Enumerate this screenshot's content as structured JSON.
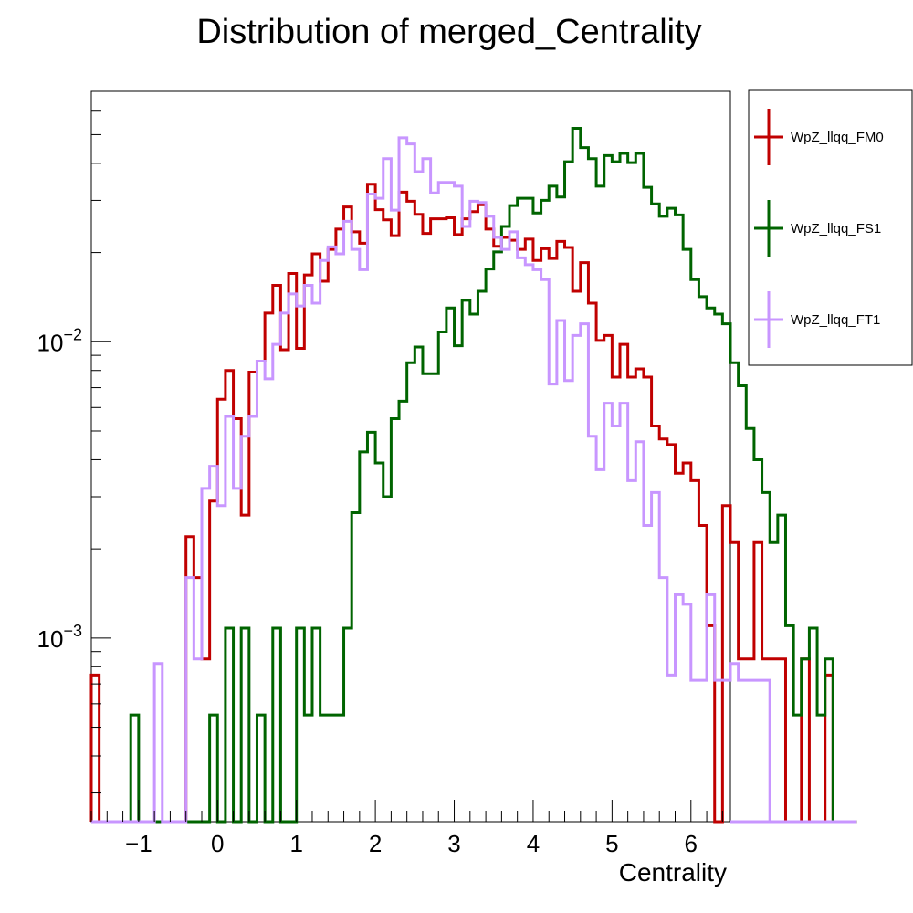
{
  "chart_data": {
    "type": "line",
    "style": "step-histogram",
    "title": "Distribution of merged_Centrality",
    "xlabel": "Centrality",
    "ylabel": "",
    "xlim": [
      -1.6,
      6.5
    ],
    "ylim": [
      0.00024,
      0.07
    ],
    "yscale": "log",
    "bin_width": 0.1,
    "x_start": -1.6,
    "grid": false,
    "legend_position": "right-outside-top",
    "x_ticks": [
      -1,
      0,
      1,
      2,
      3,
      4,
      5,
      6
    ],
    "x_tick_labels": [
      "−1",
      "0",
      "1",
      "2",
      "3",
      "4",
      "5",
      "6"
    ],
    "y_ticks": [
      {
        "value": 0.01,
        "base": "10",
        "exp": "−2"
      },
      {
        "value": 0.001,
        "base": "10",
        "exp": "−3"
      }
    ],
    "series": [
      {
        "name": "WpZ_llqq_FM0",
        "color": "#c00000",
        "values": [
          0.00075,
          0,
          0,
          0,
          0,
          0,
          0,
          0,
          0,
          0,
          0,
          0,
          0.0022,
          0.0016,
          0.00085,
          0.0029,
          0.0064,
          0.008,
          0.0055,
          0.0026,
          0.0079,
          0.0086,
          0.0125,
          0.0155,
          0.0094,
          0.017,
          0.0095,
          0.0168,
          0.0198,
          0.016,
          0.0205,
          0.024,
          0.0285,
          0.0235,
          0.0215,
          0.034,
          0.0279,
          0.0258,
          0.0228,
          0.032,
          0.0298,
          0.0269,
          0.0232,
          0.026,
          0.026,
          0.0262,
          0.023,
          0.026,
          0.0275,
          0.029,
          0.024,
          0.021,
          0.0225,
          0.022,
          0.0205,
          0.0222,
          0.0188,
          0.0206,
          0.0191,
          0.0218,
          0.0208,
          0.0148,
          0.0185,
          0.0135,
          0.0101,
          0.0105,
          0.0076,
          0.0098,
          0.0076,
          0.0081,
          0.0076,
          0.0052,
          0.0047,
          0.0045,
          0.0036,
          0.0039,
          0.0034,
          0.0024,
          0.0011,
          0,
          0.0028,
          0.0021,
          0.00085,
          0.00085,
          0.0021,
          0.00085,
          0.00085,
          0.00085,
          0,
          0,
          0.00085,
          0,
          0,
          0.00075,
          0,
          0,
          0
        ]
      },
      {
        "name": "WpZ_llqq_FS1",
        "color": "#006400",
        "values": [
          0,
          0,
          0,
          0,
          0,
          0.00055,
          0,
          0,
          0,
          0,
          0,
          0,
          0,
          0,
          0,
          0.00055,
          0,
          0.00108,
          0,
          0.00108,
          0,
          0.00055,
          0,
          0.00108,
          0,
          0,
          0.00108,
          0.00055,
          0.00108,
          0.00055,
          0.00055,
          0.00055,
          0.00108,
          0.00265,
          0.00425,
          0.00495,
          0.0039,
          0.003,
          0.0055,
          0.0063,
          0.0085,
          0.0096,
          0.0078,
          0.0078,
          0.0108,
          0.013,
          0.0097,
          0.0138,
          0.0124,
          0.0148,
          0.0176,
          0.0201,
          0.0245,
          0.0288,
          0.0305,
          0.0305,
          0.0272,
          0.03,
          0.0335,
          0.0308,
          0.0405,
          0.0525,
          0.0452,
          0.0415,
          0.0335,
          0.0425,
          0.0405,
          0.0432,
          0.0402,
          0.0432,
          0.0332,
          0.0292,
          0.0265,
          0.0282,
          0.0268,
          0.0205,
          0.0162,
          0.0142,
          0.013,
          0.0124,
          0.0115,
          0.0085,
          0.0071,
          0.0051,
          0.004,
          0.0031,
          0.0021,
          0.0026,
          0.0011,
          0.00055,
          0.00085,
          0.00108,
          0.00055,
          0.00085,
          0,
          0,
          0
        ]
      },
      {
        "name": "WpZ_llqq_FT1",
        "color": "#c896ff",
        "values": [
          0,
          0,
          0,
          0,
          0,
          0,
          0,
          0,
          0.00082,
          0,
          0,
          0,
          0.0016,
          0.00085,
          0.0032,
          0.0038,
          0.0028,
          0.0056,
          0.0032,
          0.0048,
          0.0056,
          0.0086,
          0.0075,
          0.0098,
          0.0125,
          0.0145,
          0.0132,
          0.0155,
          0.0135,
          0.0188,
          0.0209,
          0.0198,
          0.0255,
          0.0205,
          0.0175,
          0.0315,
          0.0305,
          0.0415,
          0.0278,
          0.0488,
          0.0465,
          0.0375,
          0.0415,
          0.0318,
          0.0345,
          0.0345,
          0.0335,
          0.0245,
          0.0298,
          0.0295,
          0.0265,
          0.0225,
          0.0205,
          0.0235,
          0.0192,
          0.0182,
          0.0175,
          0.0162,
          0.0072,
          0.0118,
          0.0074,
          0.0105,
          0.0115,
          0.0048,
          0.0037,
          0.0062,
          0.0052,
          0.0062,
          0.0034,
          0.0046,
          0.0024,
          0.0031,
          0.0016,
          0.00075,
          0.0014,
          0.0013,
          0.00072,
          0.00072,
          0.0014,
          0.00072,
          0.00072,
          0.00082,
          0.00072,
          0.00072,
          0.00072,
          0.00072,
          0,
          0,
          0,
          0,
          0,
          0,
          0,
          0,
          0,
          0,
          0
        ]
      }
    ]
  }
}
